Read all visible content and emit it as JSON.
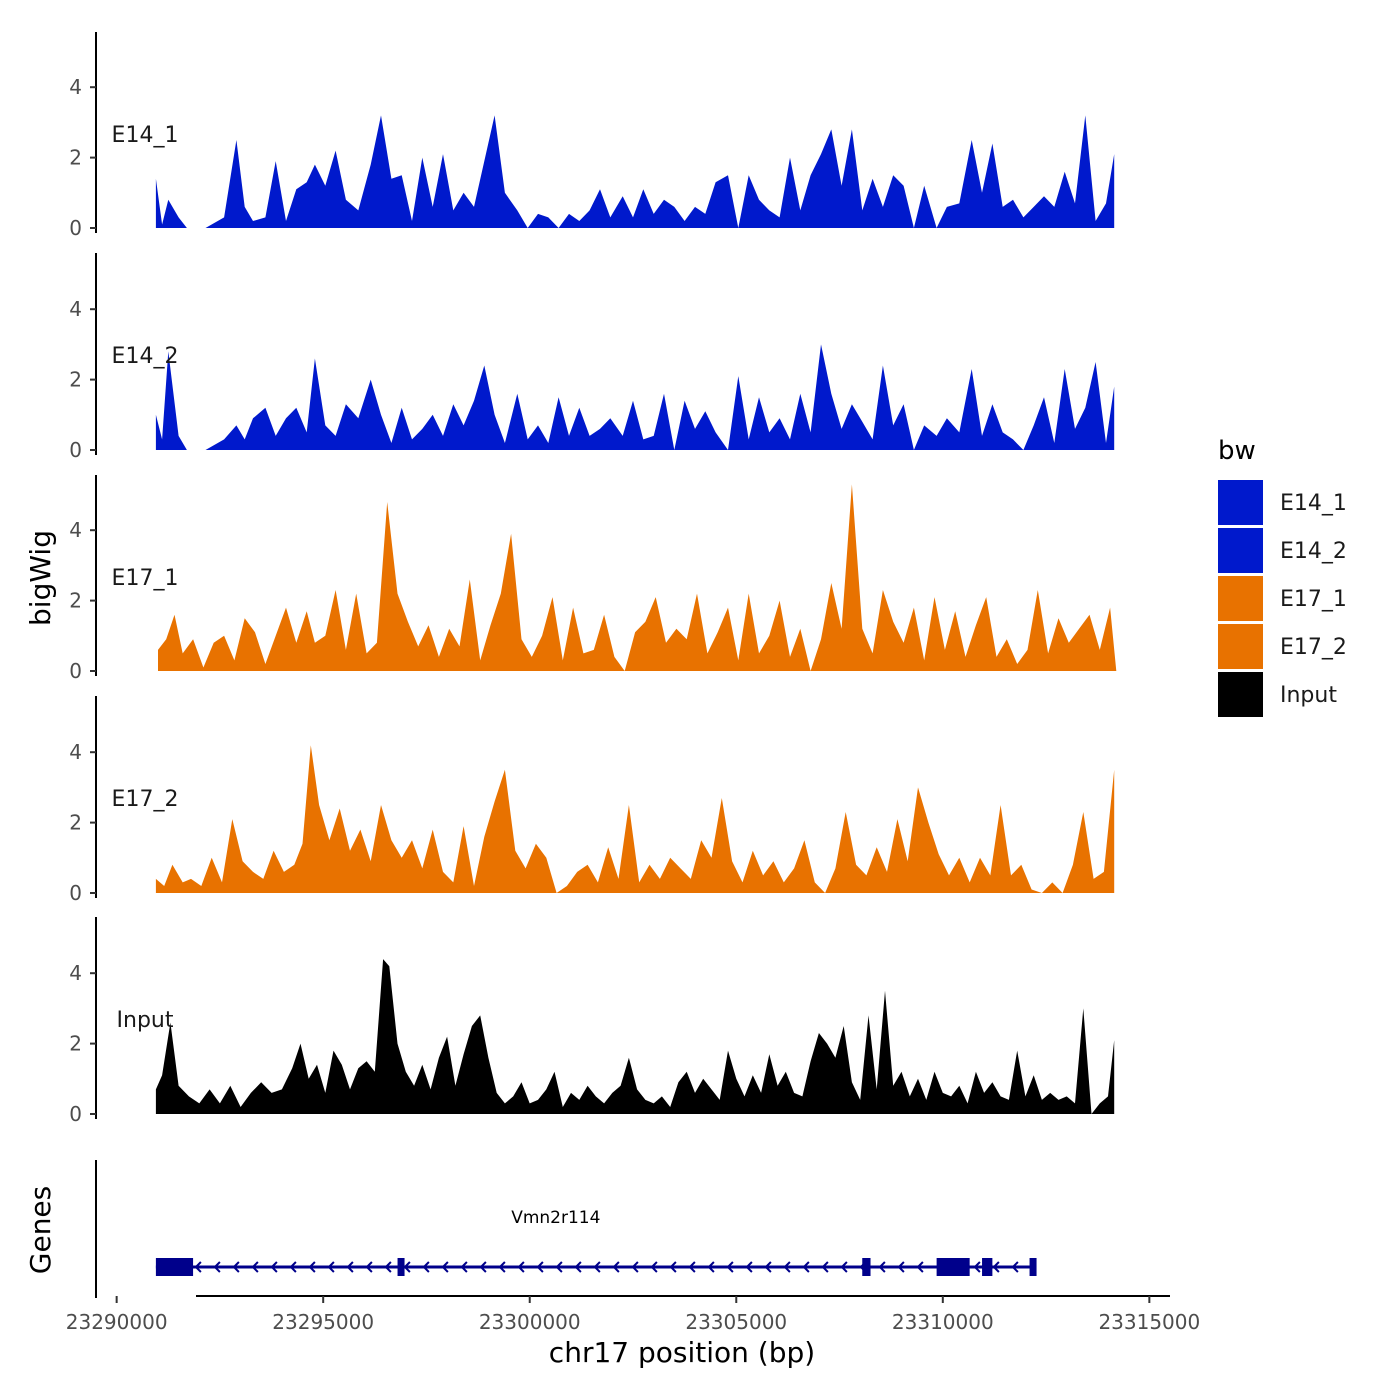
{
  "chart_data": {
    "type": "area",
    "chromosome": "chr17",
    "x_axis": {
      "label": "chr17 position (bp)",
      "range": [
        23289500,
        23315500
      ],
      "ticks": [
        23290000,
        23295000,
        23300000,
        23305000,
        23310000,
        23315000
      ],
      "tick_labels": [
        "23290000",
        "23295000",
        "23300000",
        "23305000",
        "23310000",
        "23315000"
      ]
    },
    "y_axis": {
      "label": "bigWig",
      "range": [
        0,
        5.5
      ],
      "ticks": [
        0,
        2,
        4
      ],
      "tick_labels": [
        "0",
        "2",
        "4"
      ]
    },
    "tracks": [
      {
        "name": "E14_1",
        "color": "#0019CC",
        "x": [
          23290950,
          23291100,
          23291250,
          23291500,
          23291700,
          23291900,
          23292150,
          23292600,
          23292900,
          23293100,
          23293300,
          23293600,
          23293850,
          23294100,
          23294350,
          23294600,
          23294800,
          23295050,
          23295300,
          23295550,
          23295850,
          23296150,
          23296400,
          23296650,
          23296900,
          23297150,
          23297400,
          23297650,
          23297900,
          23298150,
          23298400,
          23298650,
          23298900,
          23299150,
          23299400,
          23299700,
          23299950,
          23300200,
          23300450,
          23300700,
          23300950,
          23301200,
          23301450,
          23301700,
          23301950,
          23302250,
          23302500,
          23302750,
          23303000,
          23303250,
          23303500,
          23303750,
          23304000,
          23304250,
          23304500,
          23304800,
          23305050,
          23305300,
          23305550,
          23305800,
          23306050,
          23306300,
          23306550,
          23306800,
          23307050,
          23307300,
          23307550,
          23307800,
          23308050,
          23308300,
          23308550,
          23308800,
          23309050,
          23309300,
          23309550,
          23309850,
          23310100,
          23310400,
          23310700,
          23310950,
          23311200,
          23311450,
          23311700,
          23311950,
          23312200,
          23312450,
          23312700,
          23312950,
          23313200,
          23313450,
          23313700,
          23313950,
          23314150
        ],
        "values": [
          1.4,
          0.1,
          0.8,
          0.3,
          0.0,
          0.0,
          0.0,
          0.3,
          2.5,
          0.6,
          0.2,
          0.3,
          1.9,
          0.2,
          1.1,
          1.3,
          1.8,
          1.2,
          2.2,
          0.8,
          0.5,
          1.8,
          3.2,
          1.4,
          1.5,
          0.2,
          2.0,
          0.6,
          2.1,
          0.5,
          1.0,
          0.6,
          1.9,
          3.2,
          1.0,
          0.5,
          0.0,
          0.4,
          0.3,
          0.0,
          0.4,
          0.2,
          0.5,
          1.1,
          0.3,
          0.9,
          0.3,
          1.1,
          0.4,
          0.8,
          0.6,
          0.2,
          0.6,
          0.4,
          1.3,
          1.5,
          0.0,
          1.5,
          0.8,
          0.5,
          0.3,
          2.0,
          0.5,
          1.5,
          2.1,
          2.8,
          1.2,
          2.8,
          0.5,
          1.4,
          0.6,
          1.5,
          1.2,
          0.0,
          1.2,
          0.0,
          0.6,
          0.7,
          2.5,
          1.0,
          2.4,
          0.6,
          0.8,
          0.3,
          0.6,
          0.9,
          0.6,
          1.6,
          0.7,
          3.2,
          0.2,
          0.7,
          2.1
        ]
      },
      {
        "name": "E14_2",
        "color": "#0019CC",
        "x": [
          23290950,
          23291100,
          23291250,
          23291500,
          23291700,
          23291900,
          23292150,
          23292600,
          23292900,
          23293100,
          23293300,
          23293600,
          23293850,
          23294100,
          23294350,
          23294600,
          23294800,
          23295050,
          23295300,
          23295550,
          23295850,
          23296150,
          23296400,
          23296650,
          23296900,
          23297150,
          23297400,
          23297650,
          23297900,
          23298150,
          23298400,
          23298650,
          23298900,
          23299150,
          23299400,
          23299700,
          23299950,
          23300200,
          23300450,
          23300700,
          23300950,
          23301200,
          23301450,
          23301700,
          23301950,
          23302250,
          23302500,
          23302750,
          23303000,
          23303250,
          23303500,
          23303750,
          23304000,
          23304250,
          23304500,
          23304800,
          23305050,
          23305300,
          23305550,
          23305800,
          23306050,
          23306300,
          23306550,
          23306800,
          23307050,
          23307300,
          23307550,
          23307800,
          23308050,
          23308300,
          23308550,
          23308800,
          23309050,
          23309300,
          23309550,
          23309850,
          23310100,
          23310400,
          23310700,
          23310950,
          23311200,
          23311450,
          23311700,
          23311950,
          23312200,
          23312450,
          23312700,
          23312950,
          23313200,
          23313450,
          23313700,
          23313950,
          23314150
        ],
        "values": [
          1.0,
          0.3,
          2.8,
          0.4,
          0.0,
          0.0,
          0.0,
          0.3,
          0.7,
          0.3,
          0.9,
          1.2,
          0.4,
          0.9,
          1.2,
          0.5,
          2.6,
          0.7,
          0.4,
          1.3,
          0.9,
          2.0,
          1.0,
          0.2,
          1.2,
          0.3,
          0.6,
          1.0,
          0.4,
          1.3,
          0.7,
          1.4,
          2.4,
          1.0,
          0.2,
          1.6,
          0.3,
          0.7,
          0.2,
          1.5,
          0.4,
          1.2,
          0.4,
          0.6,
          0.9,
          0.4,
          1.4,
          0.3,
          0.4,
          1.6,
          0.0,
          1.4,
          0.6,
          1.1,
          0.5,
          0.0,
          2.1,
          0.3,
          1.5,
          0.5,
          0.9,
          0.3,
          1.6,
          0.5,
          3.0,
          1.6,
          0.6,
          1.3,
          0.8,
          0.3,
          2.4,
          0.7,
          1.3,
          0.0,
          0.7,
          0.4,
          0.9,
          0.5,
          2.3,
          0.4,
          1.3,
          0.5,
          0.3,
          0.0,
          0.7,
          1.5,
          0.2,
          2.3,
          0.6,
          1.2,
          2.5,
          0.2,
          1.8
        ]
      },
      {
        "name": "E17_1",
        "color": "#E87200",
        "x": [
          23291000,
          23291200,
          23291400,
          23291600,
          23291850,
          23292100,
          23292350,
          23292600,
          23292850,
          23293100,
          23293350,
          23293600,
          23293850,
          23294100,
          23294350,
          23294600,
          23294800,
          23295050,
          23295300,
          23295550,
          23295800,
          23296050,
          23296300,
          23296550,
          23296800,
          23297050,
          23297300,
          23297550,
          23297800,
          23298050,
          23298300,
          23298550,
          23298800,
          23299050,
          23299300,
          23299550,
          23299800,
          23300050,
          23300300,
          23300550,
          23300800,
          23301050,
          23301300,
          23301550,
          23301800,
          23302050,
          23302300,
          23302550,
          23302800,
          23303050,
          23303300,
          23303550,
          23303800,
          23304050,
          23304300,
          23304550,
          23304800,
          23305050,
          23305300,
          23305550,
          23305800,
          23306050,
          23306300,
          23306550,
          23306800,
          23307050,
          23307300,
          23307550,
          23307800,
          23308050,
          23308300,
          23308550,
          23308800,
          23309050,
          23309300,
          23309550,
          23309800,
          23310050,
          23310300,
          23310550,
          23310800,
          23311050,
          23311300,
          23311550,
          23311800,
          23312050,
          23312300,
          23312550,
          23312800,
          23313050,
          23313300,
          23313550,
          23313800,
          23314050,
          23314200
        ],
        "values": [
          0.6,
          0.9,
          1.6,
          0.5,
          0.9,
          0.1,
          0.8,
          1.0,
          0.3,
          1.5,
          1.1,
          0.2,
          1.0,
          1.8,
          0.8,
          1.7,
          0.8,
          1.0,
          2.3,
          0.6,
          2.2,
          0.5,
          0.8,
          4.8,
          2.2,
          1.4,
          0.7,
          1.3,
          0.4,
          1.2,
          0.7,
          2.6,
          0.3,
          1.3,
          2.2,
          3.9,
          0.9,
          0.4,
          1.0,
          2.1,
          0.3,
          1.8,
          0.5,
          0.6,
          1.6,
          0.4,
          0.0,
          1.1,
          1.4,
          2.1,
          0.8,
          1.2,
          0.9,
          2.2,
          0.5,
          1.1,
          1.8,
          0.3,
          2.2,
          0.5,
          1.0,
          2.0,
          0.4,
          1.2,
          0.0,
          0.9,
          2.5,
          1.2,
          5.3,
          1.2,
          0.5,
          2.3,
          1.4,
          0.8,
          1.8,
          0.3,
          2.1,
          0.6,
          1.7,
          0.4,
          1.3,
          2.1,
          0.4,
          0.9,
          0.2,
          0.6,
          2.3,
          0.5,
          1.5,
          0.8,
          1.2,
          1.6,
          0.6,
          1.8,
          0.0
        ]
      },
      {
        "name": "E17_2",
        "color": "#E87200",
        "x": [
          23290950,
          23291150,
          23291350,
          23291600,
          23291800,
          23292050,
          23292300,
          23292550,
          23292800,
          23293050,
          23293300,
          23293550,
          23293800,
          23294050,
          23294300,
          23294500,
          23294700,
          23294900,
          23295150,
          23295400,
          23295650,
          23295900,
          23296150,
          23296400,
          23296650,
          23296900,
          23297150,
          23297400,
          23297650,
          23297900,
          23298150,
          23298400,
          23298650,
          23298900,
          23299150,
          23299400,
          23299650,
          23299900,
          23300150,
          23300400,
          23300650,
          23300900,
          23301150,
          23301400,
          23301650,
          23301900,
          23302150,
          23302400,
          23302650,
          23302900,
          23303150,
          23303400,
          23303650,
          23303900,
          23304150,
          23304400,
          23304650,
          23304900,
          23305150,
          23305400,
          23305650,
          23305900,
          23306150,
          23306400,
          23306650,
          23306900,
          23307150,
          23307400,
          23307650,
          23307900,
          23308150,
          23308400,
          23308650,
          23308900,
          23309150,
          23309400,
          23309650,
          23309900,
          23310150,
          23310400,
          23310650,
          23310900,
          23311150,
          23311400,
          23311650,
          23311900,
          23312150,
          23312400,
          23312650,
          23312900,
          23313150,
          23313400,
          23313650,
          23313900,
          23314150
        ],
        "values": [
          0.4,
          0.2,
          0.8,
          0.3,
          0.4,
          0.2,
          1.0,
          0.3,
          2.1,
          0.9,
          0.6,
          0.4,
          1.2,
          0.6,
          0.8,
          1.4,
          4.2,
          2.5,
          1.5,
          2.4,
          1.2,
          1.8,
          0.9,
          2.5,
          1.5,
          1.0,
          1.5,
          0.7,
          1.8,
          0.6,
          0.3,
          1.9,
          0.2,
          1.6,
          2.6,
          3.5,
          1.2,
          0.7,
          1.4,
          1.0,
          0.0,
          0.2,
          0.6,
          0.8,
          0.3,
          1.3,
          0.4,
          2.5,
          0.3,
          0.8,
          0.4,
          1.0,
          0.7,
          0.4,
          1.5,
          1.0,
          2.7,
          0.9,
          0.3,
          1.2,
          0.5,
          0.9,
          0.3,
          0.7,
          1.5,
          0.3,
          0.0,
          0.7,
          2.3,
          0.8,
          0.5,
          1.3,
          0.6,
          2.1,
          0.9,
          3.0,
          2.0,
          1.1,
          0.5,
          1.0,
          0.3,
          1.0,
          0.5,
          2.5,
          0.5,
          0.8,
          0.1,
          0.0,
          0.3,
          0.0,
          0.8,
          2.3,
          0.4,
          0.6,
          3.5
        ]
      },
      {
        "name": "Input",
        "color": "#000000",
        "x": [
          23290950,
          23291100,
          23291300,
          23291500,
          23291750,
          23292000,
          23292250,
          23292500,
          23292750,
          23293000,
          23293250,
          23293500,
          23293750,
          23294000,
          23294250,
          23294450,
          23294650,
          23294850,
          23295050,
          23295250,
          23295450,
          23295650,
          23295850,
          23296050,
          23296250,
          23296450,
          23296600,
          23296800,
          23297000,
          23297200,
          23297400,
          23297600,
          23297800,
          23298000,
          23298200,
          23298400,
          23298600,
          23298800,
          23299000,
          23299200,
          23299400,
          23299600,
          23299800,
          23300000,
          23300200,
          23300400,
          23300600,
          23300800,
          23301000,
          23301200,
          23301400,
          23301600,
          23301800,
          23302000,
          23302200,
          23302400,
          23302600,
          23302800,
          23303000,
          23303200,
          23303400,
          23303600,
          23303800,
          23304000,
          23304200,
          23304400,
          23304600,
          23304800,
          23305000,
          23305200,
          23305400,
          23305600,
          23305800,
          23306000,
          23306200,
          23306400,
          23306600,
          23306800,
          23307000,
          23307200,
          23307400,
          23307600,
          23307800,
          23308000,
          23308200,
          23308400,
          23308600,
          23308800,
          23309000,
          23309200,
          23309400,
          23309600,
          23309800,
          23310000,
          23310200,
          23310400,
          23310600,
          23310800,
          23311000,
          23311200,
          23311400,
          23311600,
          23311800,
          23312000,
          23312200,
          23312400,
          23312600,
          23312800,
          23313000,
          23313200,
          23313400,
          23313600,
          23313800,
          23314000,
          23314150
        ],
        "values": [
          0.7,
          1.1,
          2.6,
          0.8,
          0.5,
          0.3,
          0.7,
          0.3,
          0.8,
          0.2,
          0.6,
          0.9,
          0.6,
          0.7,
          1.3,
          2.0,
          1.0,
          1.4,
          0.6,
          1.8,
          1.4,
          0.7,
          1.3,
          1.5,
          1.2,
          4.4,
          4.2,
          2.0,
          1.2,
          0.8,
          1.4,
          0.7,
          1.6,
          2.2,
          0.8,
          1.7,
          2.5,
          2.8,
          1.6,
          0.6,
          0.3,
          0.5,
          0.9,
          0.3,
          0.4,
          0.7,
          1.2,
          0.2,
          0.6,
          0.4,
          0.8,
          0.5,
          0.3,
          0.6,
          0.8,
          1.6,
          0.7,
          0.4,
          0.3,
          0.5,
          0.2,
          0.9,
          1.2,
          0.6,
          1.0,
          0.7,
          0.4,
          1.8,
          1.0,
          0.5,
          1.1,
          0.6,
          1.7,
          0.8,
          1.2,
          0.6,
          0.5,
          1.5,
          2.3,
          2.0,
          1.6,
          2.5,
          0.9,
          0.4,
          2.8,
          0.7,
          3.5,
          0.8,
          1.2,
          0.5,
          1.0,
          0.4,
          1.2,
          0.6,
          0.5,
          0.8,
          0.3,
          1.2,
          0.6,
          0.9,
          0.5,
          0.4,
          1.8,
          0.5,
          1.1,
          0.4,
          0.6,
          0.4,
          0.5,
          0.3,
          3.0,
          0.0,
          0.3,
          0.5,
          2.1
        ]
      }
    ],
    "legend": {
      "title": "bw",
      "position": "right",
      "entries": [
        {
          "label": "E14_1",
          "color": "#0019CC"
        },
        {
          "label": "E14_2",
          "color": "#0019CC"
        },
        {
          "label": "E17_1",
          "color": "#E87200"
        },
        {
          "label": "E17_2",
          "color": "#E87200"
        },
        {
          "label": "Input",
          "color": "#000000"
        }
      ]
    },
    "genes": {
      "panel_label": "Genes",
      "color": "#00008B",
      "items": [
        {
          "name": "Vmn2r114",
          "strand": "-",
          "start": 23290950,
          "end": 23312250,
          "exons": [
            [
              23290950,
              23291850
            ],
            [
              23296800,
              23296900
            ],
            [
              23308050,
              23308250
            ],
            [
              23309850,
              23310650
            ],
            [
              23310950,
              23311200
            ],
            [
              23312100,
              23312250
            ]
          ]
        }
      ]
    }
  }
}
